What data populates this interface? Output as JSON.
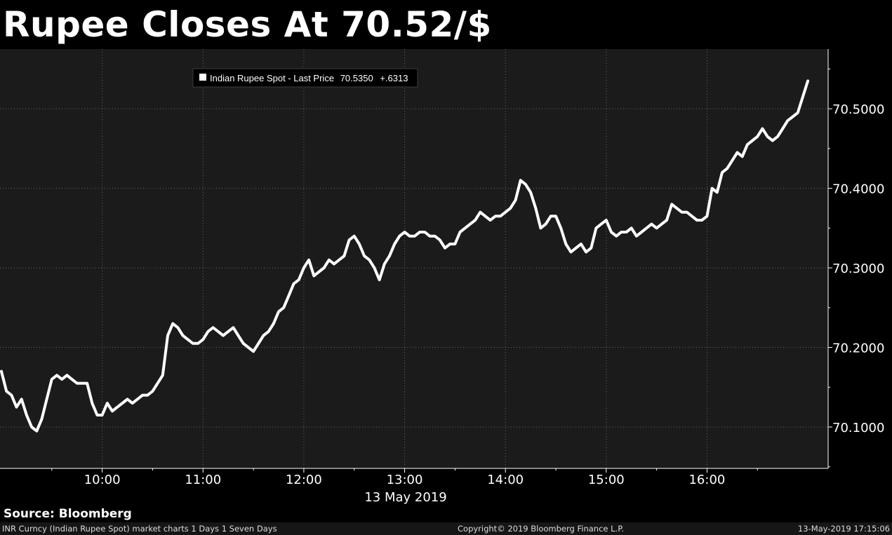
{
  "header": {
    "title": "Rupee Closes At 70.52/$"
  },
  "chart_data": {
    "type": "line",
    "title": "Rupee Closes At 70.52/$",
    "xlabel": "13 May 2019",
    "ylabel": "",
    "x_ticks": [
      "10:00",
      "11:00",
      "12:00",
      "13:00",
      "14:00",
      "15:00",
      "16:00"
    ],
    "y_ticks": [
      "70.1000",
      "70.2000",
      "70.3000",
      "70.4000",
      "70.5000"
    ],
    "ylim": [
      70.048,
      70.575
    ],
    "xlim": [
      "09:00",
      "17:10"
    ],
    "grid": true,
    "colors": {
      "background": "#1b1b1b",
      "line": "#ffffff",
      "grid": "#666666"
    },
    "legend": {
      "position": "top-left",
      "label": "Indian Rupee Spot - Last Price",
      "last_price": "70.5350",
      "change": "+.6313"
    },
    "series": [
      {
        "name": "Indian Rupee Spot - Last Price",
        "x": [
          "09:00",
          "09:03",
          "09:06",
          "09:09",
          "09:12",
          "09:15",
          "09:18",
          "09:21",
          "09:24",
          "09:27",
          "09:30",
          "09:33",
          "09:36",
          "09:39",
          "09:42",
          "09:45",
          "09:48",
          "09:51",
          "09:54",
          "09:57",
          "10:00",
          "10:03",
          "10:06",
          "10:09",
          "10:12",
          "10:15",
          "10:18",
          "10:21",
          "10:24",
          "10:27",
          "10:30",
          "10:33",
          "10:36",
          "10:39",
          "10:42",
          "10:45",
          "10:48",
          "10:51",
          "10:54",
          "10:57",
          "11:00",
          "11:03",
          "11:06",
          "11:09",
          "11:12",
          "11:15",
          "11:18",
          "11:21",
          "11:24",
          "11:27",
          "11:30",
          "11:33",
          "11:36",
          "11:39",
          "11:42",
          "11:45",
          "11:48",
          "11:51",
          "11:54",
          "11:57",
          "12:00",
          "12:03",
          "12:06",
          "12:09",
          "12:12",
          "12:15",
          "12:18",
          "12:21",
          "12:24",
          "12:27",
          "12:30",
          "12:33",
          "12:36",
          "12:39",
          "12:42",
          "12:45",
          "12:48",
          "12:51",
          "12:54",
          "12:57",
          "13:00",
          "13:03",
          "13:06",
          "13:09",
          "13:12",
          "13:15",
          "13:18",
          "13:21",
          "13:24",
          "13:27",
          "13:30",
          "13:33",
          "13:36",
          "13:39",
          "13:42",
          "13:45",
          "13:48",
          "13:51",
          "13:54",
          "13:57",
          "14:00",
          "14:03",
          "14:06",
          "14:09",
          "14:12",
          "14:15",
          "14:18",
          "14:21",
          "14:24",
          "14:27",
          "14:30",
          "14:33",
          "14:36",
          "14:39",
          "14:42",
          "14:45",
          "14:48",
          "14:51",
          "14:54",
          "14:57",
          "15:00",
          "15:03",
          "15:06",
          "15:09",
          "15:12",
          "15:15",
          "15:18",
          "15:21",
          "15:24",
          "15:27",
          "15:30",
          "15:33",
          "15:36",
          "15:39",
          "15:42",
          "15:45",
          "15:48",
          "15:51",
          "15:54",
          "15:57",
          "16:00",
          "16:03",
          "16:06",
          "16:09",
          "16:12",
          "16:15",
          "16:18",
          "16:21",
          "16:24",
          "16:27",
          "16:30",
          "16:33",
          "16:36",
          "16:39",
          "16:42",
          "16:45",
          "16:48",
          "16:51",
          "16:54",
          "16:57",
          "17:00"
        ],
        "values": [
          70.17,
          70.145,
          70.14,
          70.125,
          70.135,
          70.115,
          70.1,
          70.095,
          70.11,
          70.135,
          70.16,
          70.165,
          70.16,
          70.165,
          70.16,
          70.155,
          70.155,
          70.155,
          70.13,
          70.115,
          70.115,
          70.13,
          70.12,
          70.125,
          70.13,
          70.135,
          70.13,
          70.135,
          70.14,
          70.14,
          70.145,
          70.155,
          70.165,
          70.215,
          70.23,
          70.225,
          70.215,
          70.21,
          70.205,
          70.205,
          70.21,
          70.22,
          70.225,
          70.22,
          70.215,
          70.22,
          70.225,
          70.215,
          70.205,
          70.2,
          70.195,
          70.205,
          70.215,
          70.22,
          70.23,
          70.245,
          70.25,
          70.265,
          70.28,
          70.285,
          70.3,
          70.31,
          70.29,
          70.295,
          70.3,
          70.31,
          70.305,
          70.31,
          70.315,
          70.335,
          70.34,
          70.33,
          70.315,
          70.31,
          70.3,
          70.285,
          70.305,
          70.315,
          70.33,
          70.34,
          70.345,
          70.34,
          70.34,
          70.345,
          70.345,
          70.34,
          70.34,
          70.335,
          70.325,
          70.33,
          70.33,
          70.345,
          70.35,
          70.355,
          70.36,
          70.37,
          70.365,
          70.36,
          70.365,
          70.365,
          70.37,
          70.375,
          70.385,
          70.41,
          70.405,
          70.395,
          70.375,
          70.35,
          70.355,
          70.365,
          70.365,
          70.35,
          70.33,
          70.32,
          70.325,
          70.33,
          70.32,
          70.325,
          70.35,
          70.355,
          70.36,
          70.345,
          70.34,
          70.345,
          70.345,
          70.35,
          70.34,
          70.345,
          70.35,
          70.355,
          70.35,
          70.355,
          70.36,
          70.38,
          70.375,
          70.37,
          70.37,
          70.365,
          70.36,
          70.36,
          70.365,
          70.4,
          70.395,
          70.42,
          70.425,
          70.435,
          70.445,
          70.44,
          70.455,
          70.46,
          70.465,
          70.475,
          70.465,
          70.46,
          70.465,
          70.475,
          70.485,
          70.49,
          70.495,
          70.515,
          70.535
        ]
      }
    ]
  },
  "source": {
    "text": "Source: Bloomberg"
  },
  "footer": {
    "left": "INR Curncy (Indian Rupee Spot) market charts 1 Days 1 Seven Days",
    "center": "Copyright© 2019 Bloomberg Finance L.P.",
    "right": "13-May-2019 17:15:06"
  }
}
